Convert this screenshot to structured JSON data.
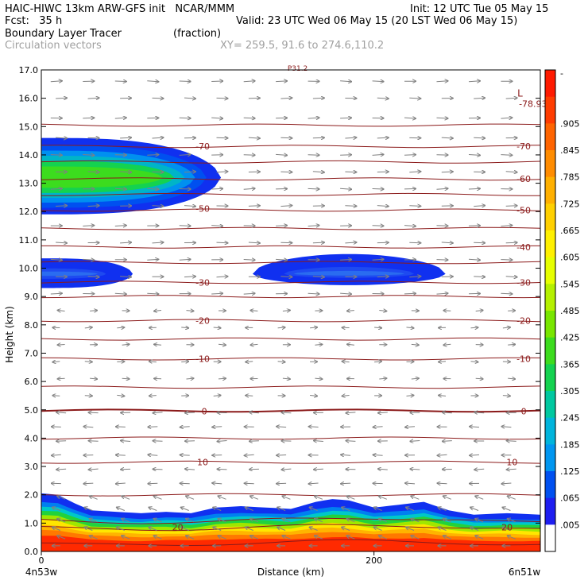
{
  "header": {
    "line1_left": "HAIC-HIWC 13km ARW-GFS init   NCAR/MMM",
    "line1_right": "Init: 12 UTC Tue 05 May 15",
    "line2_left": "Fcst:   35 h",
    "line2_right": "Valid: 23 UTC Wed 06 May 15 (20 LST Wed 06 May 15)",
    "line3_field": "Boundary Layer Tracer",
    "line3_units": "(fraction)",
    "line4_vectors": "Circulation vectors",
    "line4_xy": "XY= 259.5, 91.6 to 274.6,110.2"
  },
  "colors": {
    "contour": "#8b1a1a",
    "vector": "#808080",
    "bl_red": "#ff2a00",
    "bl_blue": "#1030f0"
  },
  "chart_data": {
    "type": "heatmap",
    "xlabel": "Distance (km)",
    "ylabel": "Height (km)",
    "xlim": [
      0,
      300
    ],
    "ylim": [
      0,
      17
    ],
    "x_ticks": [
      {
        "value": 0,
        "label": "0"
      },
      {
        "value": 200,
        "label": "200"
      }
    ],
    "x_end_labels": {
      "left": "4n53w",
      "right": "6n51w"
    },
    "y_ticks": [
      {
        "value": 0,
        "label": "0.0"
      },
      {
        "value": 1,
        "label": "1.0"
      },
      {
        "value": 2,
        "label": "2.0"
      },
      {
        "value": 3,
        "label": "3.0"
      },
      {
        "value": 4,
        "label": "4.0"
      },
      {
        "value": 5,
        "label": "5.0"
      },
      {
        "value": 6,
        "label": "6.0"
      },
      {
        "value": 7,
        "label": "7.0"
      },
      {
        "value": 8,
        "label": "8.0"
      },
      {
        "value": 9,
        "label": "9.0"
      },
      {
        "value": 10,
        "label": "10.0"
      },
      {
        "value": 11,
        "label": "11.0"
      },
      {
        "value": 12,
        "label": "12.0"
      },
      {
        "value": 13,
        "label": "13.0"
      },
      {
        "value": 14,
        "label": "14.0"
      },
      {
        "value": 15,
        "label": "15.0"
      },
      {
        "value": 16,
        "label": "16.0"
      },
      {
        "value": 17,
        "label": "17.0"
      }
    ],
    "colorbar": {
      "labels": [
        "-",
        ".905",
        ".845",
        ".785",
        ".725",
        ".665",
        ".605",
        ".545",
        ".485",
        ".425",
        ".365",
        ".305",
        ".245",
        ".185",
        ".125",
        ".065",
        ".005"
      ],
      "colors": [
        "#ff1a00",
        "#ff3c00",
        "#ff6400",
        "#ff8c00",
        "#ffb000",
        "#ffd000",
        "#fff000",
        "#e6ff00",
        "#b4f000",
        "#78e600",
        "#3cdc1e",
        "#14d250",
        "#00c8a0",
        "#00b4dc",
        "#0096f0",
        "#0050f0",
        "#1e1ef0",
        "#ffffff"
      ]
    },
    "temperature_contours": [
      {
        "value": 20,
        "label": "20",
        "label_positions": [
          {
            "x": 82,
            "y": 0.85
          },
          {
            "x": 280,
            "y": 0.85
          }
        ]
      },
      {
        "value": 10,
        "label": "10",
        "label_positions": [
          {
            "x": 97,
            "y": 3.15
          },
          {
            "x": 283,
            "y": 3.15
          }
        ]
      },
      {
        "value": 0,
        "label": "0",
        "label_positions": [
          {
            "x": 98,
            "y": 4.95
          },
          {
            "x": 290,
            "y": 4.95
          }
        ]
      },
      {
        "value": -10,
        "label": "-10",
        "label_positions": [
          {
            "x": 97,
            "y": 6.8
          },
          {
            "x": 290,
            "y": 6.8
          }
        ]
      },
      {
        "value": -20,
        "label": "-20",
        "label_positions": [
          {
            "x": 97,
            "y": 8.15
          },
          {
            "x": 290,
            "y": 8.15
          }
        ]
      },
      {
        "value": -30,
        "label": "-30",
        "label_positions": [
          {
            "x": 97,
            "y": 9.5
          },
          {
            "x": 290,
            "y": 9.5
          }
        ]
      },
      {
        "value": -40,
        "label": "-40",
        "label_positions": [
          {
            "x": 290,
            "y": 10.75
          }
        ]
      },
      {
        "value": -50,
        "label": "-50",
        "label_positions": [
          {
            "x": 97,
            "y": 12.1
          },
          {
            "x": 290,
            "y": 12.05
          }
        ]
      },
      {
        "value": -60,
        "label": "-60",
        "label_positions": [
          {
            "x": 290,
            "y": 13.15
          }
        ]
      },
      {
        "value": -70,
        "label": "-70",
        "label_positions": [
          {
            "x": 97,
            "y": 14.3
          },
          {
            "x": 290,
            "y": 14.3
          }
        ]
      }
    ],
    "contour_heights_km": [
      0.3,
      0.85,
      1.1,
      2.0,
      3.15,
      4.0,
      4.97,
      5.8,
      6.8,
      7.5,
      8.15,
      9.0,
      9.5,
      10.2,
      10.75,
      11.4,
      12.05,
      12.6,
      13.15,
      13.75,
      14.3,
      15.05
    ],
    "minimum_label": {
      "symbol": "L",
      "value": "-78.93",
      "x": 290,
      "y": 15.95
    },
    "top_label": {
      "text": "P31.2",
      "x": 148,
      "y": 17.0
    },
    "boundary_layer_top_km": [
      [
        0,
        2.05
      ],
      [
        10,
        2.0
      ],
      [
        20,
        1.7
      ],
      [
        30,
        1.45
      ],
      [
        45,
        1.4
      ],
      [
        60,
        1.35
      ],
      [
        75,
        1.4
      ],
      [
        90,
        1.35
      ],
      [
        105,
        1.55
      ],
      [
        120,
        1.6
      ],
      [
        135,
        1.55
      ],
      [
        150,
        1.5
      ],
      [
        165,
        1.75
      ],
      [
        175,
        1.85
      ],
      [
        185,
        1.8
      ],
      [
        200,
        1.55
      ],
      [
        215,
        1.65
      ],
      [
        230,
        1.75
      ],
      [
        245,
        1.45
      ],
      [
        260,
        1.3
      ],
      [
        280,
        1.35
      ],
      [
        300,
        1.3
      ]
    ],
    "upper_plumes": [
      {
        "x_range": [
          0,
          108
        ],
        "bottom_km": 11.9,
        "top_km": 14.6,
        "core_km": 13.2,
        "max_fraction": 0.4
      },
      {
        "x_range": [
          0,
          55
        ],
        "bottom_km": 9.3,
        "top_km": 10.35,
        "core_km": 9.8,
        "max_fraction": 0.02
      },
      {
        "x_range": [
          127,
          243
        ],
        "bottom_km": 9.4,
        "top_km": 10.5,
        "core_km": 9.8,
        "max_fraction": 0.04
      }
    ],
    "wind_vector_levels_km": [
      0.2,
      0.5,
      0.8,
      1.1,
      1.5,
      1.9,
      2.4,
      2.9,
      3.4,
      3.9,
      4.4,
      4.9,
      5.5,
      6.1,
      6.7,
      7.3,
      7.9,
      8.5,
      9.1,
      9.7,
      10.3,
      10.9,
      11.5,
      12.2,
      12.8,
      13.4,
      14.0,
      14.6,
      15.3,
      16.0,
      16.6
    ]
  }
}
